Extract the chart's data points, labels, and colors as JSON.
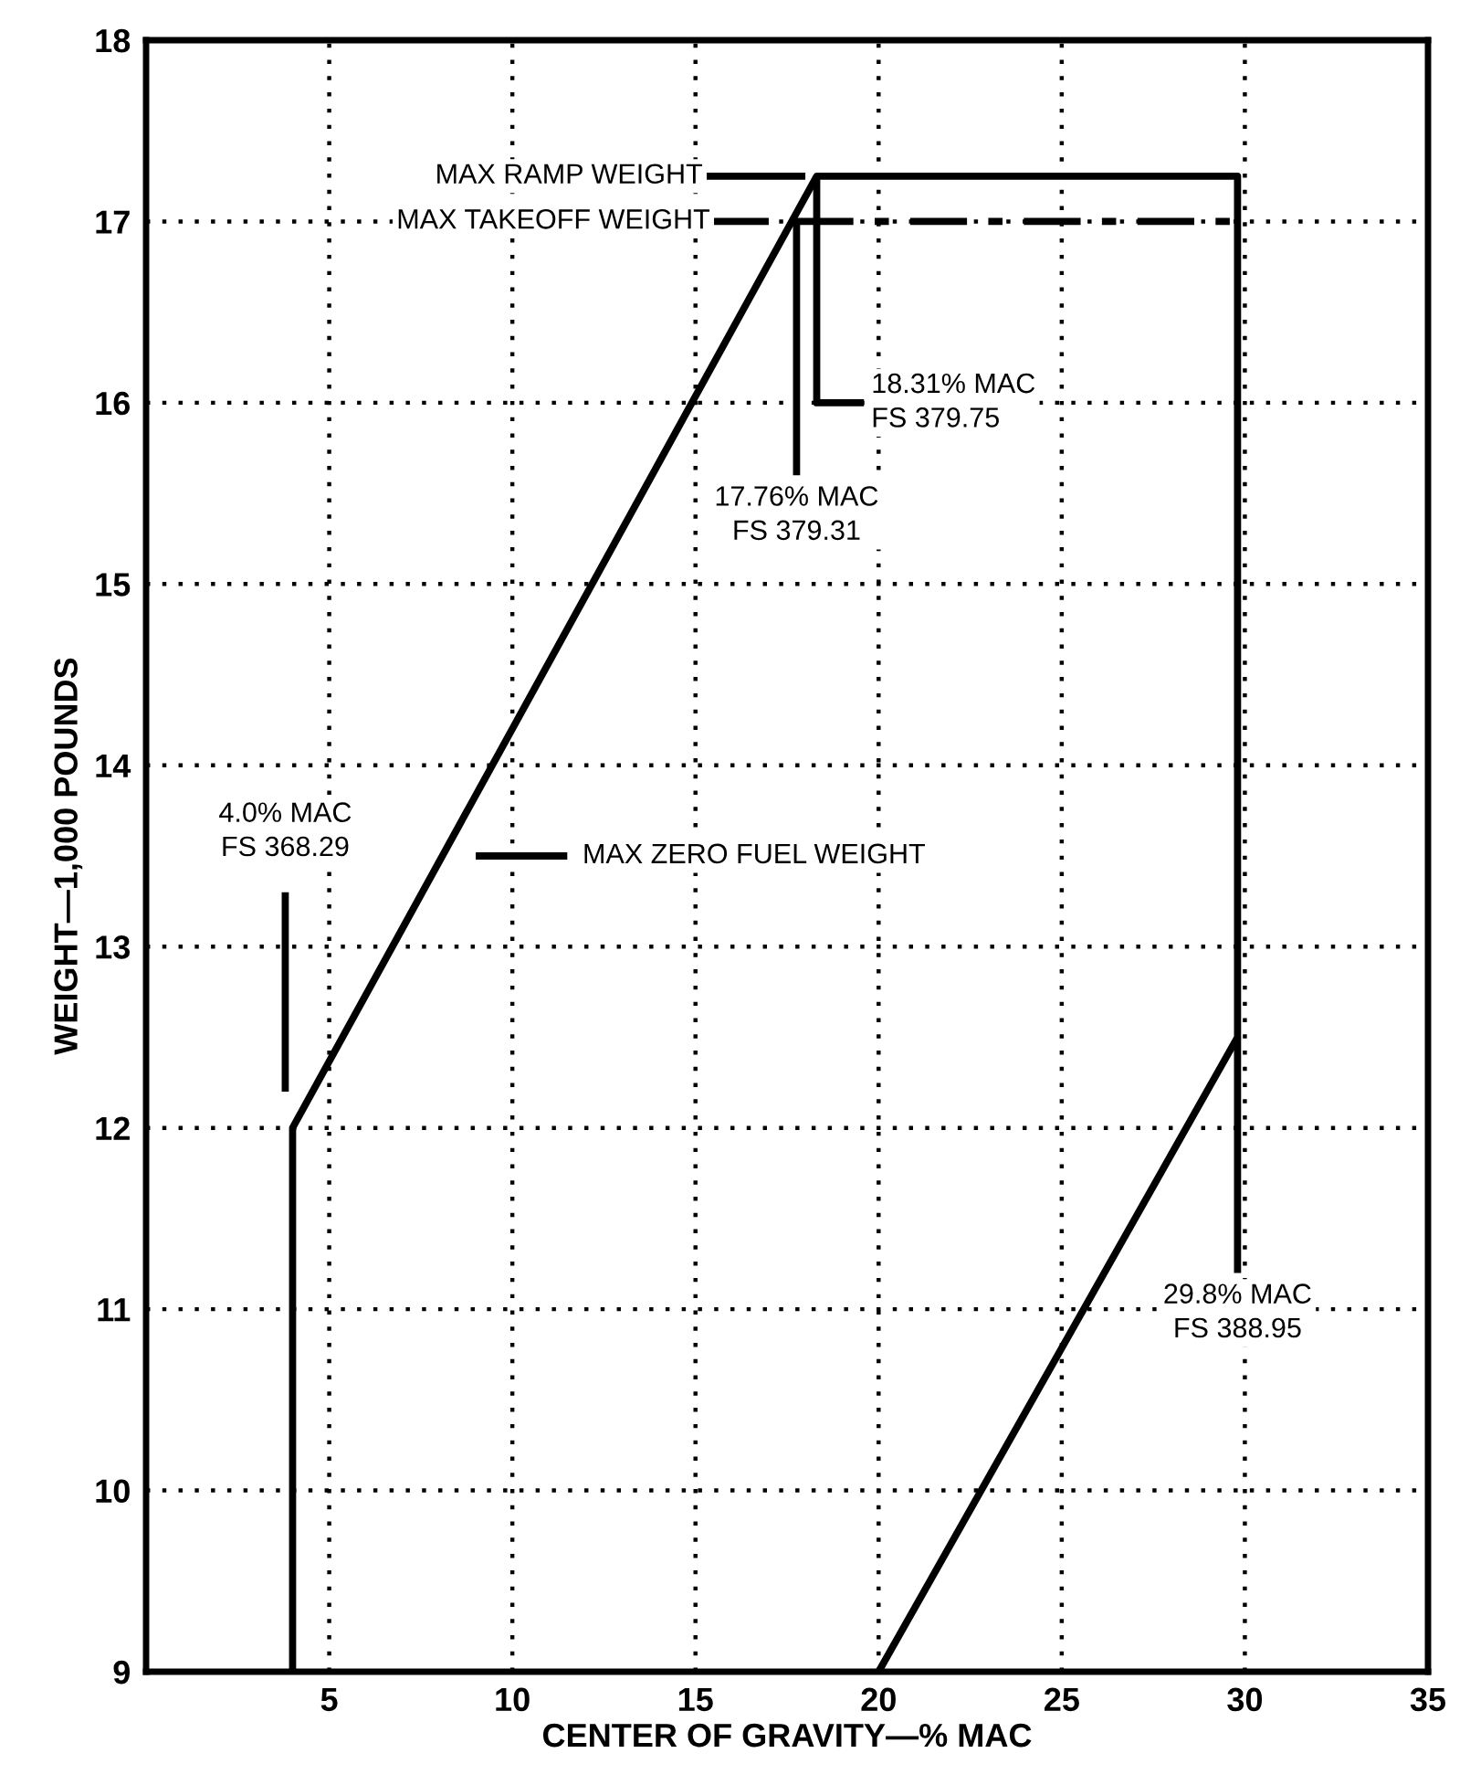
{
  "chart_data": {
    "type": "line",
    "xlabel": "CENTER OF GRAVITY—% MAC",
    "ylabel": "WEIGHT—1,000 POUNDS",
    "xlim": [
      0,
      35
    ],
    "xticks": [
      5,
      10,
      15,
      20,
      25,
      30,
      35
    ],
    "ylim": [
      9,
      18
    ],
    "yticks": [
      9,
      10,
      11,
      12,
      13,
      14,
      15,
      16,
      17,
      18
    ],
    "grid": true,
    "marker": "none",
    "series": [
      {
        "color": "#000000",
        "line_style": "solid",
        "x": [
          4,
          4,
          18.31,
          29.8,
          29.8,
          20
        ],
        "values": [
          9,
          12,
          17.25,
          17.25,
          12.5,
          9
        ]
      },
      {
        "color": "#000000",
        "line_style": "dashed",
        "x": [
          17.76,
          29.8
        ],
        "values": [
          17,
          17
        ]
      },
      {
        "color": "#000000",
        "line_style": "solid",
        "x": [
          15.3,
          18.0
        ],
        "values": [
          17.25,
          17.25
        ]
      },
      {
        "color": "#000000",
        "line_style": "solid",
        "x": [
          15.5,
          17.0
        ],
        "values": [
          17,
          17
        ]
      },
      {
        "color": "#000000",
        "line_style": "solid",
        "x": [
          17.76,
          17.76
        ],
        "values": [
          17,
          15.6
        ]
      },
      {
        "color": "#000000",
        "line_style": "solid",
        "x": [
          18.31,
          18.31,
          19.6
        ],
        "values": [
          17.25,
          16,
          16
        ]
      },
      {
        "color": "#000000",
        "line_style": "solid",
        "x": [
          3.8,
          3.8
        ],
        "values": [
          13.3,
          12.2
        ]
      },
      {
        "color": "#000000",
        "line_style": "solid",
        "x": [
          29.8,
          29.8
        ],
        "values": [
          12.5,
          11.2
        ]
      },
      {
        "color": "#000000",
        "line_style": "solid",
        "x": [
          9.0,
          11.5
        ],
        "values": [
          13.5,
          13.5
        ]
      }
    ],
    "annotations": [
      {
        "text": "MAX RAMP WEIGHT",
        "x": 15.2,
        "y": 17.25
      },
      {
        "text": "MAX TAKEOFF WEIGHT",
        "x": 15.4,
        "y": 17
      },
      {
        "text": "17.76% MAC\nFS 379.31",
        "x": 17.76,
        "y": 15.6
      },
      {
        "text": "18.31% MAC\nFS 379.75",
        "x": 19.8,
        "y": 16
      },
      {
        "text": "4.0% MAC\nFS 368.29",
        "x": 3.8,
        "y": 13.3
      },
      {
        "text": "MAX ZERO FUEL WEIGHT",
        "x": 11.5,
        "y": 13.5
      },
      {
        "text": "29.8% MAC\nFS 388.95",
        "x": 29.8,
        "y": 11.2
      }
    ]
  }
}
